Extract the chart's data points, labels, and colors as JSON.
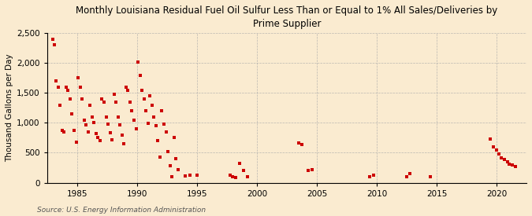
{
  "title": "Monthly Louisiana Residual Fuel Oil Sulfur Less Than or Equal to 1% All Sales/Deliveries by\nPrime Supplier",
  "ylabel": "Thousand Gallons per Day",
  "source": "Source: U.S. Energy Information Administration",
  "background_color": "#faebd0",
  "marker_color": "#cc0000",
  "xlim": [
    1982.5,
    2022.5
  ],
  "ylim": [
    0,
    2500
  ],
  "yticks": [
    0,
    500,
    1000,
    1500,
    2000,
    2500
  ],
  "ytick_labels": [
    "0",
    "500",
    "1,000",
    "1,500",
    "2,000",
    "2,500"
  ],
  "xticks": [
    1985,
    1990,
    1995,
    2000,
    2005,
    2010,
    2015,
    2020
  ],
  "x": [
    1983.0,
    1983.08,
    1983.25,
    1983.42,
    1983.58,
    1983.75,
    1983.92,
    1984.08,
    1984.25,
    1984.42,
    1984.58,
    1984.75,
    1984.92,
    1985.08,
    1985.25,
    1985.42,
    1985.58,
    1985.75,
    1985.92,
    1986.08,
    1986.25,
    1986.42,
    1986.58,
    1986.75,
    1986.92,
    1987.08,
    1987.25,
    1987.42,
    1987.58,
    1987.75,
    1987.92,
    1988.08,
    1988.25,
    1988.42,
    1988.58,
    1988.75,
    1988.92,
    1989.08,
    1989.25,
    1989.42,
    1989.58,
    1989.75,
    1989.92,
    1990.08,
    1990.25,
    1990.42,
    1990.58,
    1990.75,
    1990.92,
    1991.08,
    1991.25,
    1991.42,
    1991.58,
    1991.75,
    1991.92,
    1992.08,
    1992.25,
    1992.42,
    1992.58,
    1992.75,
    1992.92,
    1993.08,
    1993.25,
    1993.42,
    1994.0,
    1994.42,
    1995.0,
    1997.75,
    1998.0,
    1998.25,
    1998.58,
    1998.92,
    1999.25,
    2003.5,
    2003.75,
    2004.25,
    2004.58,
    2009.42,
    2009.75,
    2012.5,
    2012.75,
    2014.5,
    2019.5,
    2019.75,
    2020.0,
    2020.17,
    2020.42,
    2020.67,
    2020.92,
    2021.08,
    2021.33,
    2021.58
  ],
  "y": [
    2400,
    2300,
    1700,
    1600,
    1300,
    870,
    850,
    1600,
    1550,
    1400,
    1150,
    870,
    680,
    1750,
    1600,
    1400,
    1050,
    960,
    850,
    1300,
    1100,
    1000,
    820,
    750,
    700,
    1400,
    1350,
    1100,
    980,
    830,
    720,
    1480,
    1350,
    1100,
    960,
    800,
    650,
    1600,
    1550,
    1350,
    1200,
    1050,
    900,
    2020,
    1800,
    1550,
    1400,
    1200,
    990,
    1450,
    1300,
    1100,
    950,
    700,
    430,
    1200,
    980,
    850,
    520,
    280,
    100,
    750,
    400,
    220,
    110,
    130,
    130,
    130,
    95,
    80,
    320,
    200,
    100,
    660,
    640,
    200,
    220,
    100,
    130,
    95,
    150,
    100,
    730,
    600,
    540,
    480,
    420,
    390,
    350,
    310,
    290,
    270
  ]
}
